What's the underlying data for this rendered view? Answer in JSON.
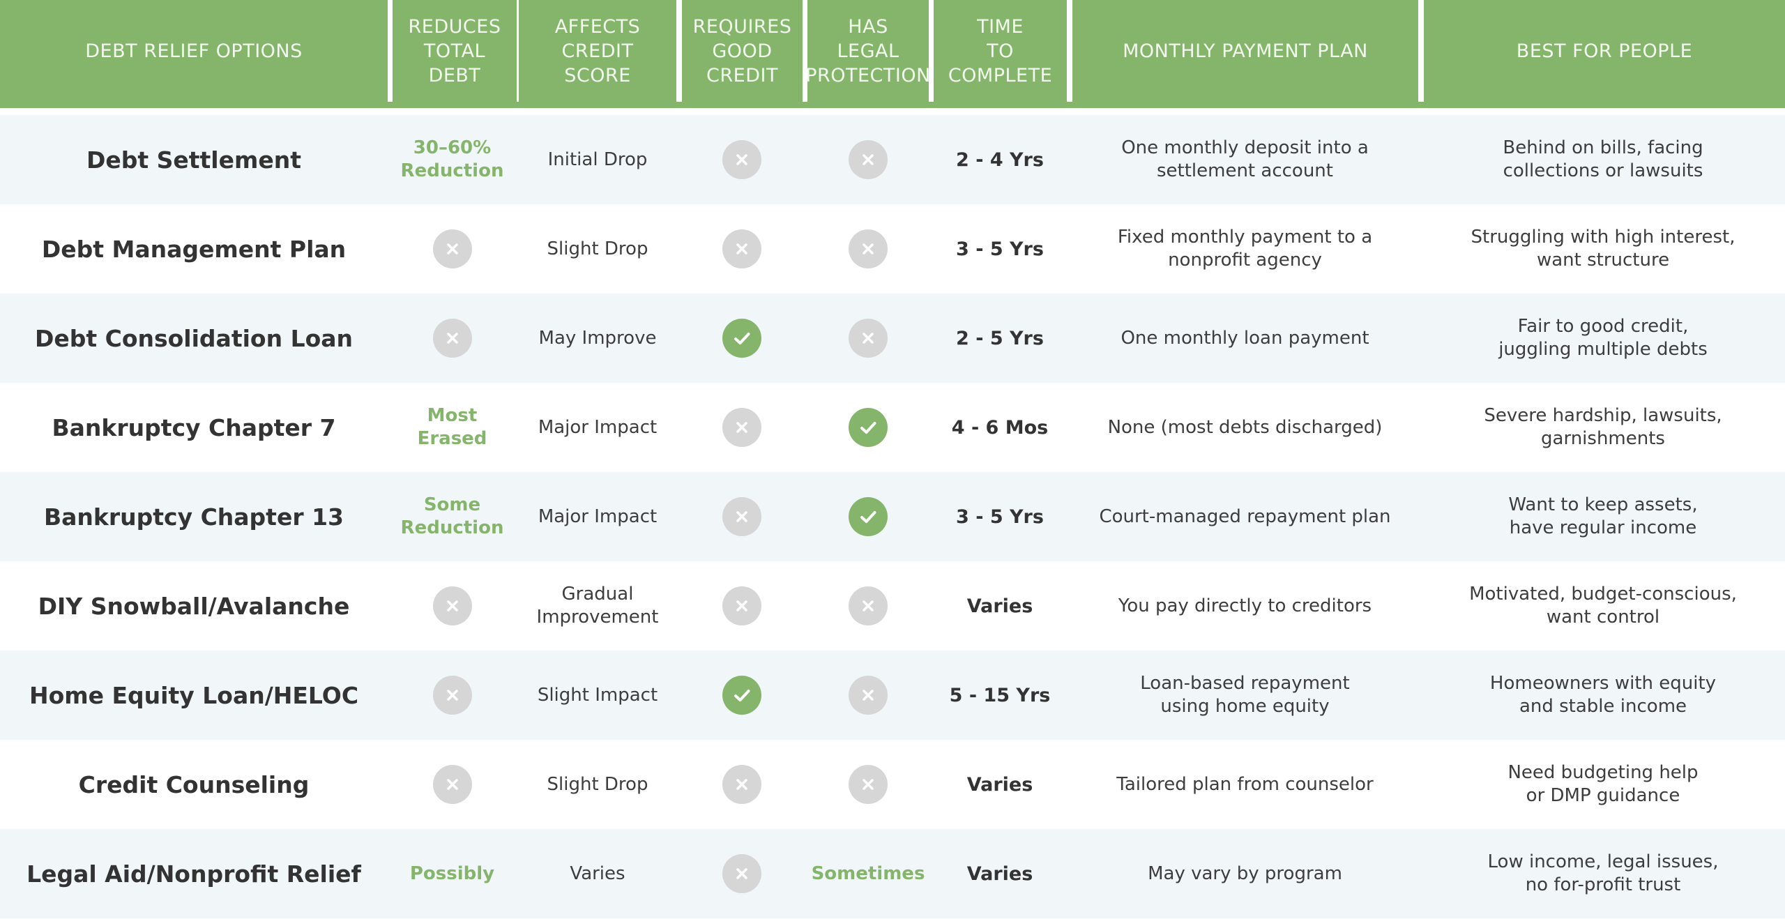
{
  "headers": {
    "option": "DEBT RELIEF OPTIONS",
    "reduces": "REDUCES\nTOTAL\nDEBT",
    "credit_score": "AFFECTS\nCREDIT\nSCORE",
    "good_credit": "REQUIRES\nGOOD\nCREDIT",
    "legal": "HAS\nLEGAL\nPROTECTION",
    "time": "TIME\nTO\nCOMPLETE",
    "payment": "MONTHLY PAYMENT PLAN",
    "best_for": "BEST FOR PEOPLE"
  },
  "colors": {
    "accent": "#85b56b",
    "no_icon": "#d6d6d6",
    "stripe": "#f1f6f9"
  },
  "rows": [
    {
      "name": "Debt Settlement",
      "reduces": {
        "type": "text",
        "value": "30–60%\nReduction"
      },
      "credit": "Initial Drop",
      "good_credit": {
        "type": "no"
      },
      "legal": {
        "type": "no"
      },
      "time": "2 - 4 Yrs",
      "payment": "One monthly deposit into a\nsettlement account",
      "best": "Behind on bills, facing\ncollections or lawsuits"
    },
    {
      "name": "Debt Management Plan",
      "reduces": {
        "type": "no"
      },
      "credit": "Slight Drop",
      "good_credit": {
        "type": "no"
      },
      "legal": {
        "type": "no"
      },
      "time": "3 - 5 Yrs",
      "payment": "Fixed monthly payment to a\nnonprofit agency",
      "best": "Struggling with high interest,\nwant structure"
    },
    {
      "name": "Debt Consolidation Loan",
      "reduces": {
        "type": "no"
      },
      "credit": "May Improve",
      "good_credit": {
        "type": "yes"
      },
      "legal": {
        "type": "no"
      },
      "time": "2 - 5 Yrs",
      "payment": "One monthly loan payment",
      "best": "Fair to good credit,\njuggling multiple debts"
    },
    {
      "name": "Bankruptcy Chapter 7",
      "reduces": {
        "type": "text",
        "value": "Most\nErased"
      },
      "credit": "Major Impact",
      "good_credit": {
        "type": "no"
      },
      "legal": {
        "type": "yes"
      },
      "time": "4 - 6 Mos",
      "payment": "None (most debts discharged)",
      "best": "Severe hardship, lawsuits,\ngarnishments"
    },
    {
      "name": "Bankruptcy Chapter 13",
      "reduces": {
        "type": "text",
        "value": "Some\nReduction"
      },
      "credit": "Major Impact",
      "good_credit": {
        "type": "no"
      },
      "legal": {
        "type": "yes"
      },
      "time": "3 - 5 Yrs",
      "payment": "Court-managed repayment plan",
      "best": "Want to keep assets,\nhave regular income"
    },
    {
      "name": "DIY Snowball/Avalanche",
      "reduces": {
        "type": "no"
      },
      "credit": "Gradual\nImprovement",
      "good_credit": {
        "type": "no"
      },
      "legal": {
        "type": "no"
      },
      "time": "Varies",
      "payment": "You pay directly to creditors",
      "best": "Motivated, budget-conscious,\nwant control"
    },
    {
      "name": "Home Equity Loan/HELOC",
      "reduces": {
        "type": "no"
      },
      "credit": "Slight Impact",
      "good_credit": {
        "type": "yes"
      },
      "legal": {
        "type": "no"
      },
      "time": "5 - 15 Yrs",
      "payment": "Loan-based repayment\nusing home equity",
      "best": "Homeowners with equity\nand stable income"
    },
    {
      "name": "Credit Counseling",
      "reduces": {
        "type": "no"
      },
      "credit": "Slight Drop",
      "good_credit": {
        "type": "no"
      },
      "legal": {
        "type": "no"
      },
      "time": "Varies",
      "payment": "Tailored plan from counselor",
      "best": "Need budgeting help\nor DMP guidance"
    },
    {
      "name": "Legal Aid/Nonprofit Relief",
      "reduces": {
        "type": "text",
        "value": "Possibly"
      },
      "credit": "Varies",
      "good_credit": {
        "type": "no"
      },
      "legal": {
        "type": "text",
        "value": "Sometimes"
      },
      "time": "Varies",
      "payment": "May vary by program",
      "best": "Low income, legal issues,\nno for-profit trust"
    }
  ]
}
